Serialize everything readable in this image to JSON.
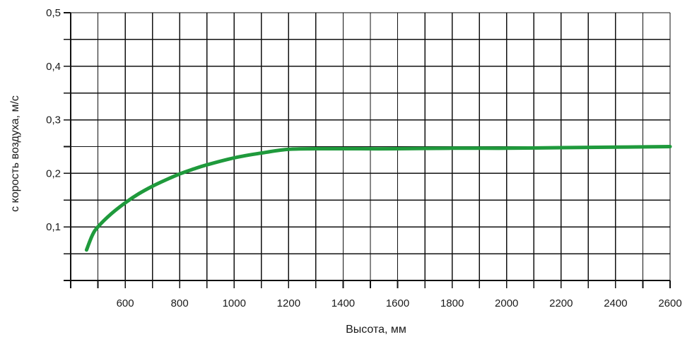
{
  "chart_data": {
    "type": "line",
    "title": "",
    "xlabel": "Высота, мм",
    "ylabel": "с корость воздуха, м/с",
    "xlim": [
      400,
      2600
    ],
    "ylim": [
      0,
      0.5
    ],
    "x_ticks": [
      400,
      500,
      600,
      700,
      800,
      900,
      1000,
      1100,
      1200,
      1300,
      1400,
      1500,
      1600,
      1700,
      1800,
      1900,
      2000,
      2100,
      2200,
      2300,
      2400,
      2500,
      2600
    ],
    "x_tick_labels": [
      {
        "value": 600,
        "label": "600"
      },
      {
        "value": 800,
        "label": "800"
      },
      {
        "value": 1000,
        "label": "1000"
      },
      {
        "value": 1200,
        "label": "1200"
      },
      {
        "value": 1400,
        "label": "1400"
      },
      {
        "value": 1600,
        "label": "1600"
      },
      {
        "value": 1800,
        "label": "1800"
      },
      {
        "value": 2000,
        "label": "2000"
      },
      {
        "value": 2200,
        "label": "2200"
      },
      {
        "value": 2400,
        "label": "2400"
      },
      {
        "value": 2600,
        "label": "2600"
      }
    ],
    "y_ticks": [
      0,
      0.05,
      0.1,
      0.15,
      0.2,
      0.25,
      0.3,
      0.35,
      0.4,
      0.45,
      0.5
    ],
    "y_tick_labels": [
      {
        "value": 0.1,
        "label": "0,1"
      },
      {
        "value": 0.2,
        "label": "0,2"
      },
      {
        "value": 0.3,
        "label": "0,3"
      },
      {
        "value": 0.4,
        "label": "0,4"
      },
      {
        "value": 0.5,
        "label": "0,5"
      }
    ],
    "grid": true,
    "series": [
      {
        "color": "#1f9a3c",
        "x": [
          458,
          480,
          500,
          550,
          600,
          650,
          700,
          750,
          800,
          850,
          900,
          1000,
          1100,
          1200,
          1300,
          1400,
          1600,
          1800,
          2000,
          2200,
          2400,
          2600
        ],
        "y": [
          0.057,
          0.085,
          0.1,
          0.125,
          0.145,
          0.162,
          0.176,
          0.188,
          0.199,
          0.208,
          0.216,
          0.229,
          0.238,
          0.245,
          0.246,
          0.246,
          0.246,
          0.247,
          0.247,
          0.248,
          0.249,
          0.25
        ]
      }
    ]
  }
}
